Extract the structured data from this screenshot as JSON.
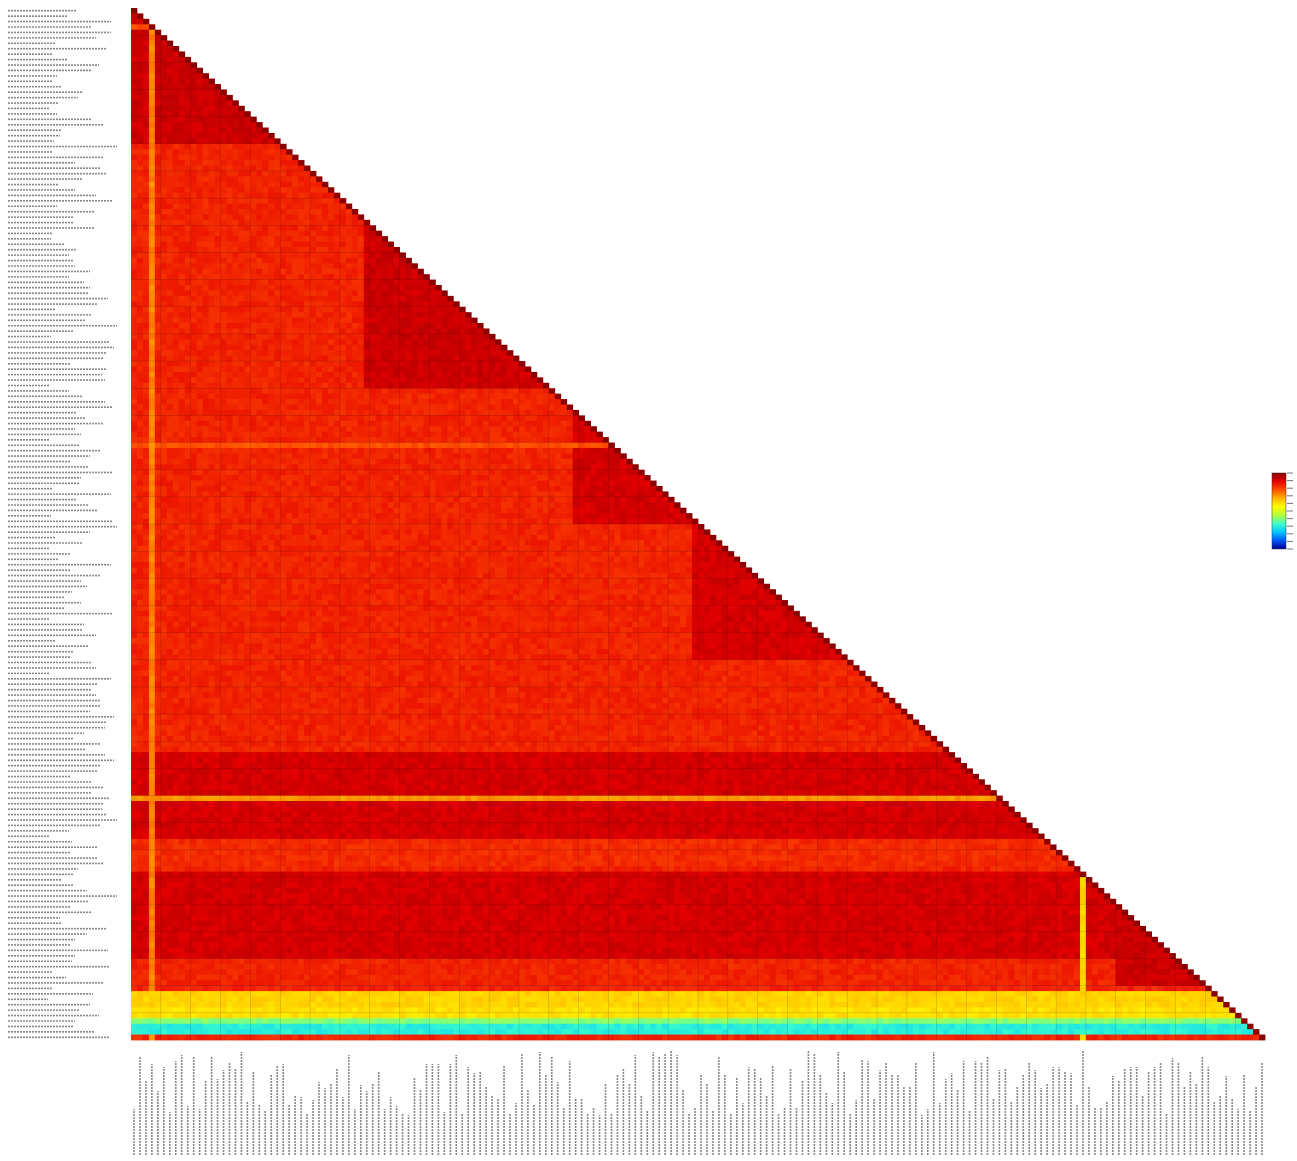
{
  "chart_data": {
    "type": "heatmap",
    "layout": "lower-triangle",
    "title": "",
    "xlabel": "",
    "ylabel": "",
    "tick_labels_legible": false,
    "n_sequences": 190,
    "value_range": [
      0,
      100
    ],
    "colormap": [
      "#00008b",
      "#0055ff",
      "#00c8ff",
      "#3cffc8",
      "#b4ff3c",
      "#ffff00",
      "#ffb400",
      "#ff5000",
      "#e60000",
      "#8b0000"
    ],
    "grid_color": "#000000",
    "background_value": 84,
    "blocks": [
      {
        "rows": [
          1,
          25
        ],
        "cols": [
          1,
          25
        ],
        "value": 92
      },
      {
        "rows": [
          40,
          70
        ],
        "cols": [
          40,
          70
        ],
        "value": 92
      },
      {
        "rows": [
          75,
          95
        ],
        "cols": [
          75,
          95
        ],
        "value": 91
      },
      {
        "rows": [
          95,
          120
        ],
        "cols": [
          95,
          120
        ],
        "value": 91
      },
      {
        "rows": [
          138,
          153
        ],
        "cols": [
          1,
          153
        ],
        "value": 91
      },
      {
        "rows": [
          154,
          158
        ],
        "cols": [
          1,
          158
        ],
        "value": 83
      },
      {
        "rows": [
          160,
          175
        ],
        "cols": [
          1,
          175
        ],
        "value": 91
      },
      {
        "rows": [
          166,
          180
        ],
        "cols": [
          166,
          180
        ],
        "value": 92
      }
    ],
    "low_rows": [
      {
        "row": 4,
        "value": 78
      },
      {
        "row": 81,
        "value": 78
      },
      {
        "row": 146,
        "value": 70
      },
      {
        "row": 182,
        "value": 62
      },
      {
        "row": 183,
        "value": 62
      },
      {
        "row": 184,
        "value": 62
      },
      {
        "row": 185,
        "value": 60
      },
      {
        "row": 186,
        "value": 60
      },
      {
        "row": 187,
        "value": 40
      },
      {
        "row": 188,
        "value": 30
      },
      {
        "row": 189,
        "value": 30
      }
    ],
    "low_cols": [
      {
        "col": 4,
        "value": 72
      },
      {
        "col": 160,
        "value": 62
      }
    ],
    "legend": {
      "title": "",
      "position": "right",
      "ticks": []
    }
  }
}
